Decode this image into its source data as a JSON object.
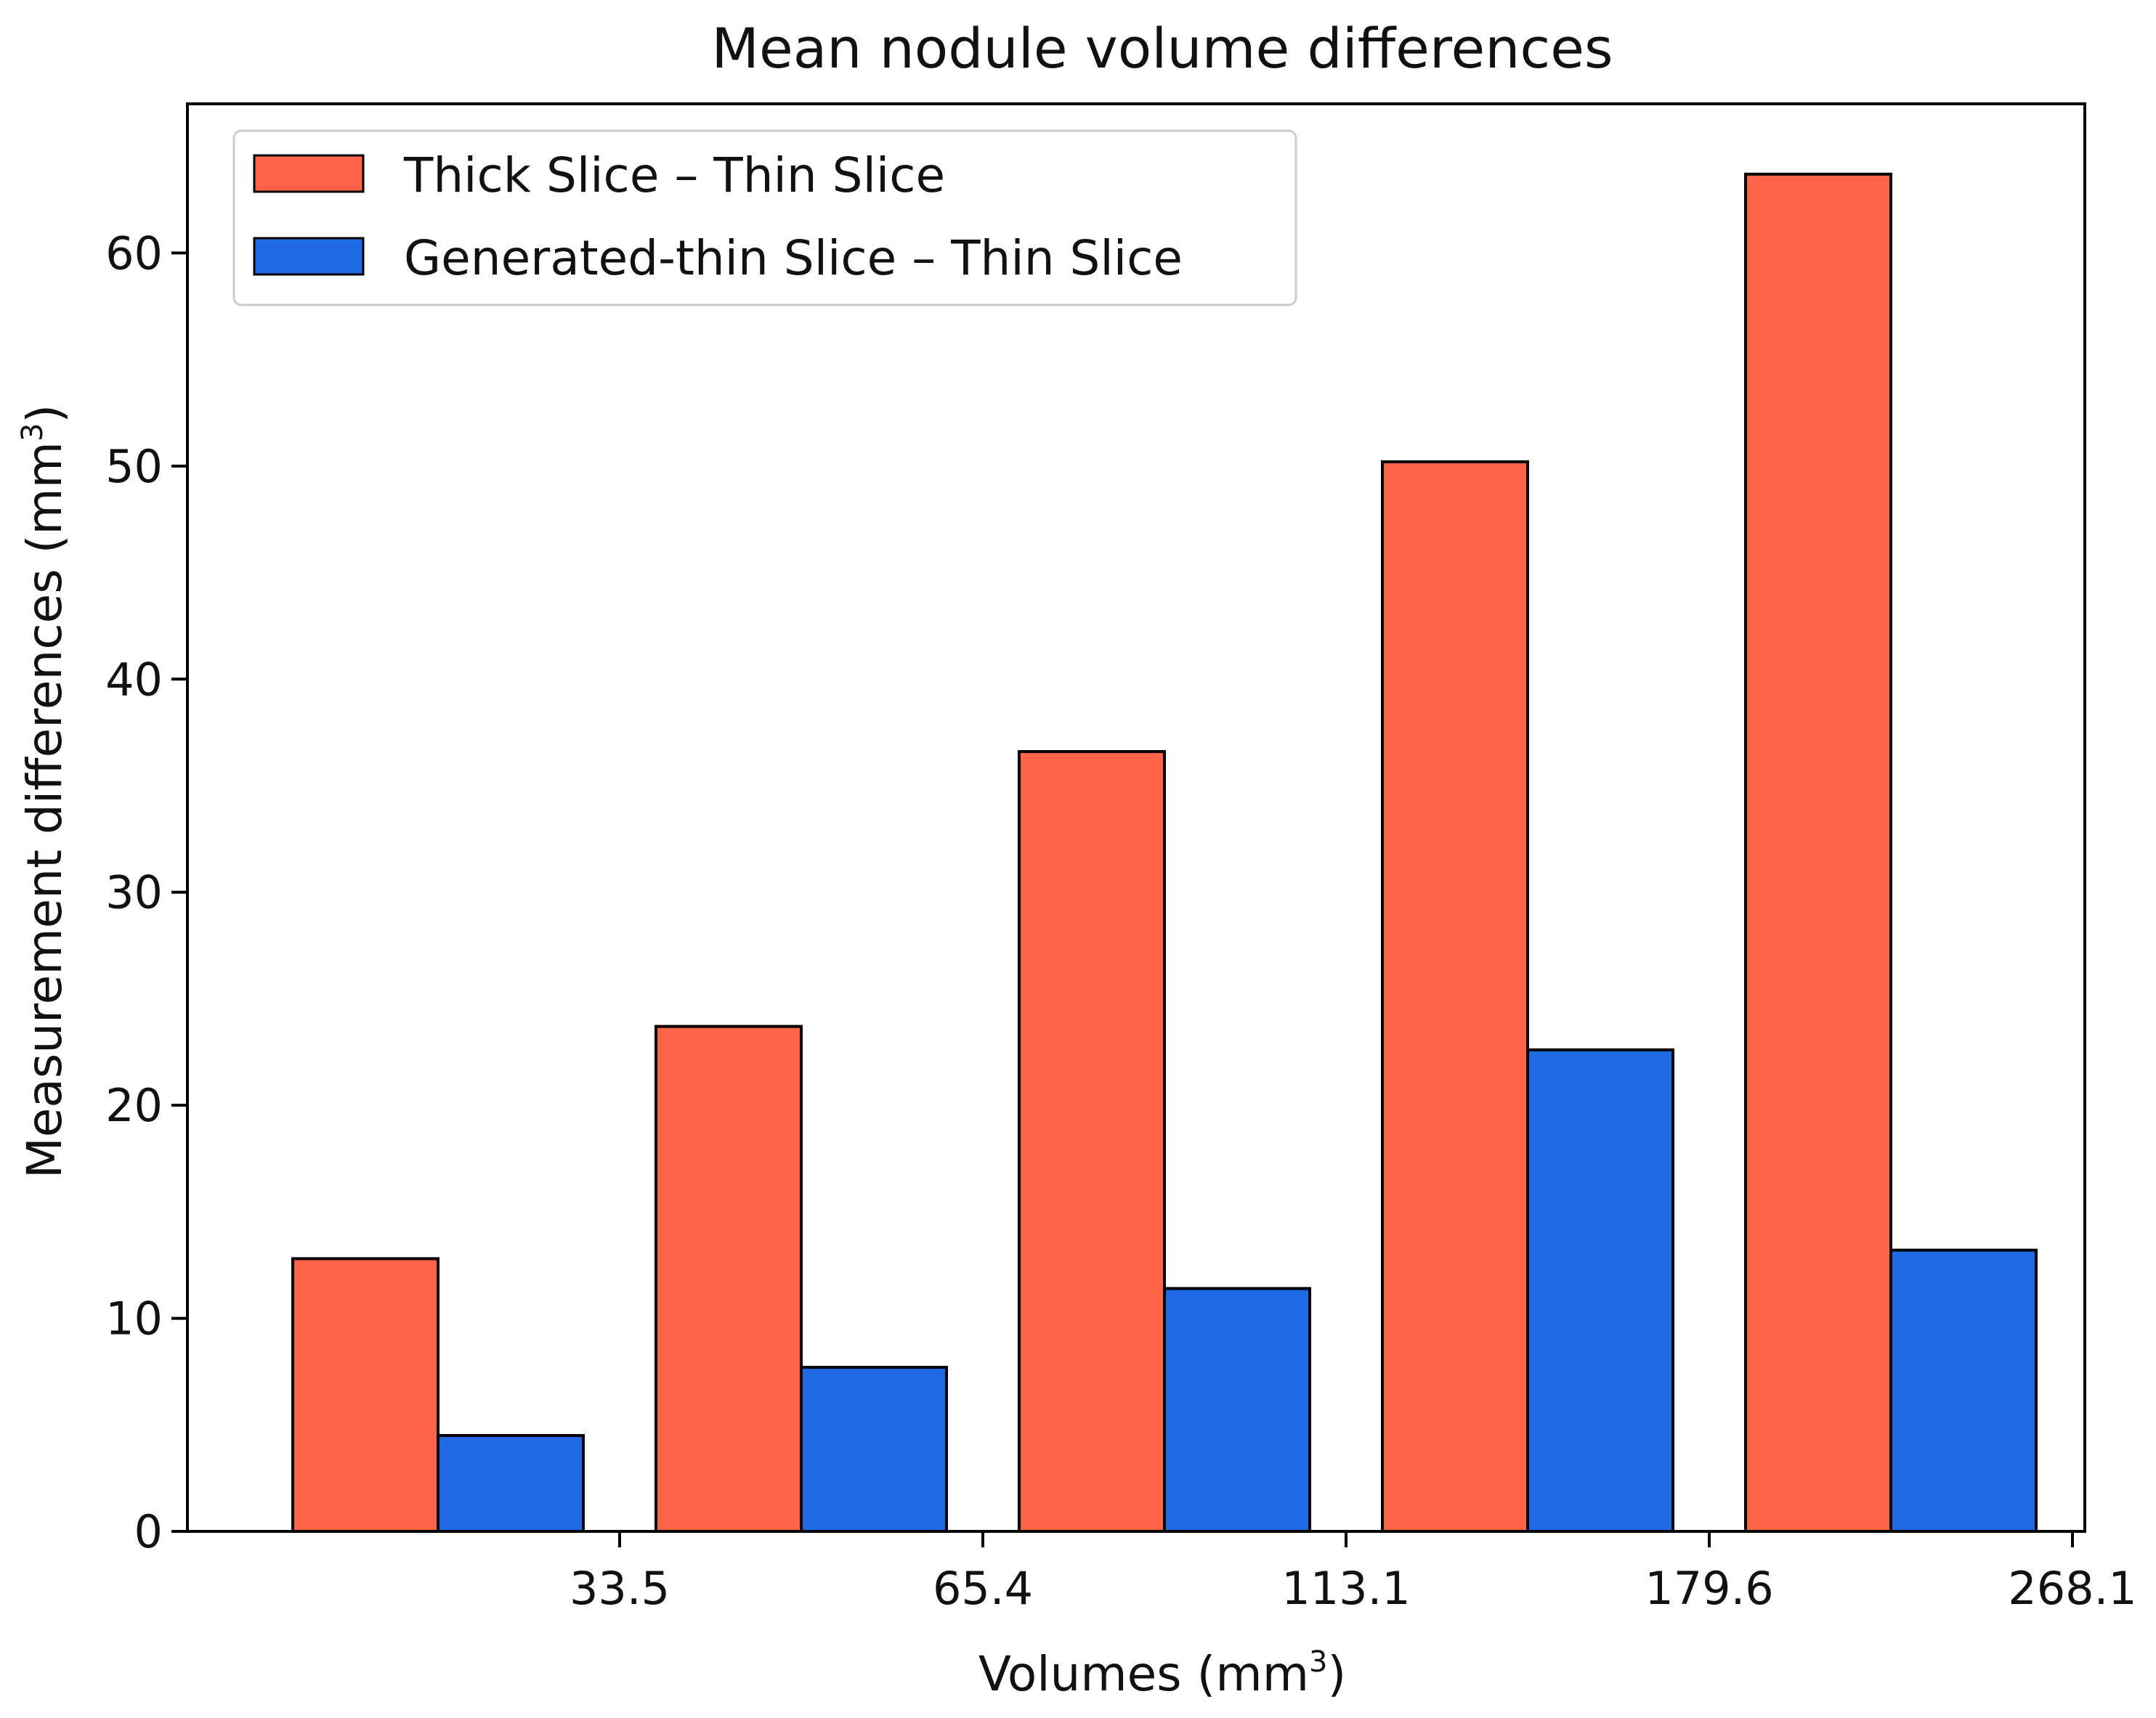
{
  "chart_data": {
    "type": "bar",
    "title": "Mean nodule volume differences",
    "xlabel": "Volumes (mm",
    "xlabel_sup": "3",
    "xlabel_end": ")",
    "ylabel": "Measurement differences (mm",
    "ylabel_sup": "3",
    "ylabel_end": ")",
    "categories": [
      "",
      "",
      "",
      "",
      ""
    ],
    "x_tick_labels": [
      "33.5",
      "65.4",
      "113.1",
      "179.6",
      "268.1"
    ],
    "y_ticks": [
      0,
      10,
      20,
      30,
      40,
      50,
      60
    ],
    "ylim": [
      0,
      67
    ],
    "legend_position": "top-left",
    "series": [
      {
        "name": "Thick Slice – Thin Slice",
        "color": "#ff6347",
        "values": [
          12.8,
          23.7,
          36.6,
          50.2,
          63.7
        ]
      },
      {
        "name": "Generated-thin Slice – Thin Slice",
        "color": "#1f69e4",
        "values": [
          4.5,
          7.7,
          11.4,
          22.6,
          13.2
        ]
      }
    ]
  }
}
